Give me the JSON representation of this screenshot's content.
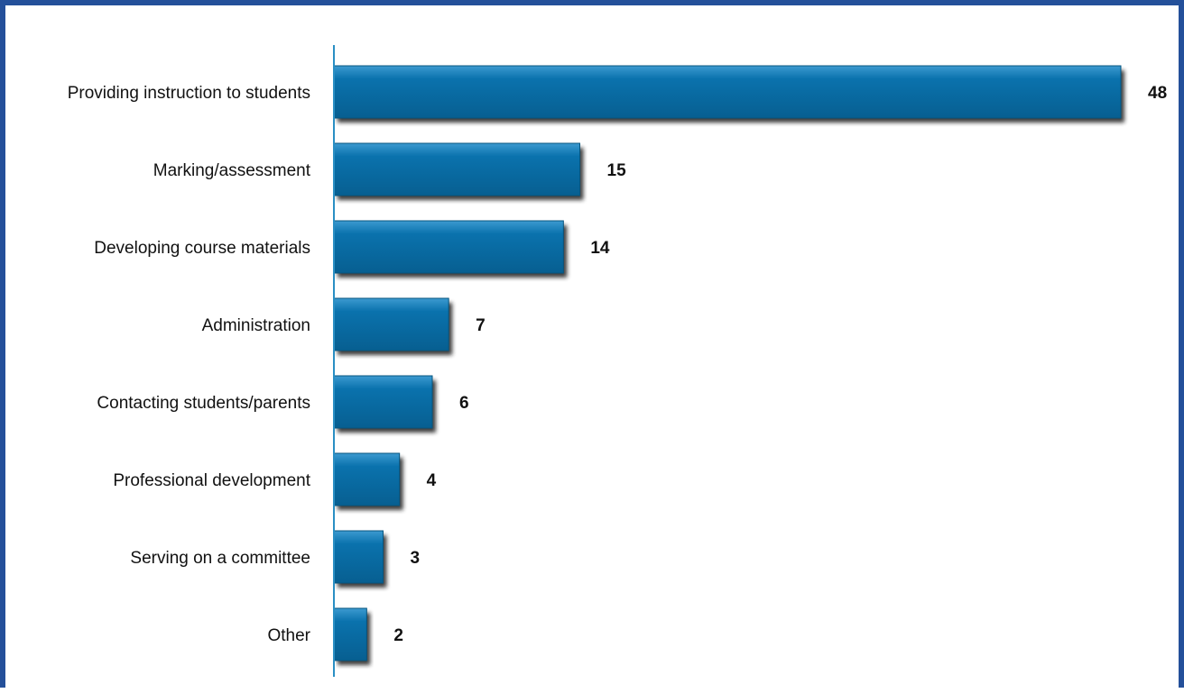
{
  "colors": {
    "frame": "#24509a",
    "bar": "#0a72ad",
    "bar_shadow": "#1a1a1a",
    "axis": "#2a8fc4"
  },
  "chart_data": {
    "type": "bar",
    "orientation": "horizontal",
    "title": "",
    "xlabel": "",
    "ylabel": "",
    "categories": [
      "Providing instruction to students",
      "Marking/assessment",
      "Developing course materials",
      "Administration",
      "Contacting students/parents",
      "Professional development",
      "Serving on a committee",
      "Other"
    ],
    "values": [
      48,
      15,
      14,
      7,
      6,
      4,
      3,
      2
    ],
    "xlim": [
      0,
      48
    ],
    "grid": false,
    "legend": "none",
    "data_labels": true
  }
}
